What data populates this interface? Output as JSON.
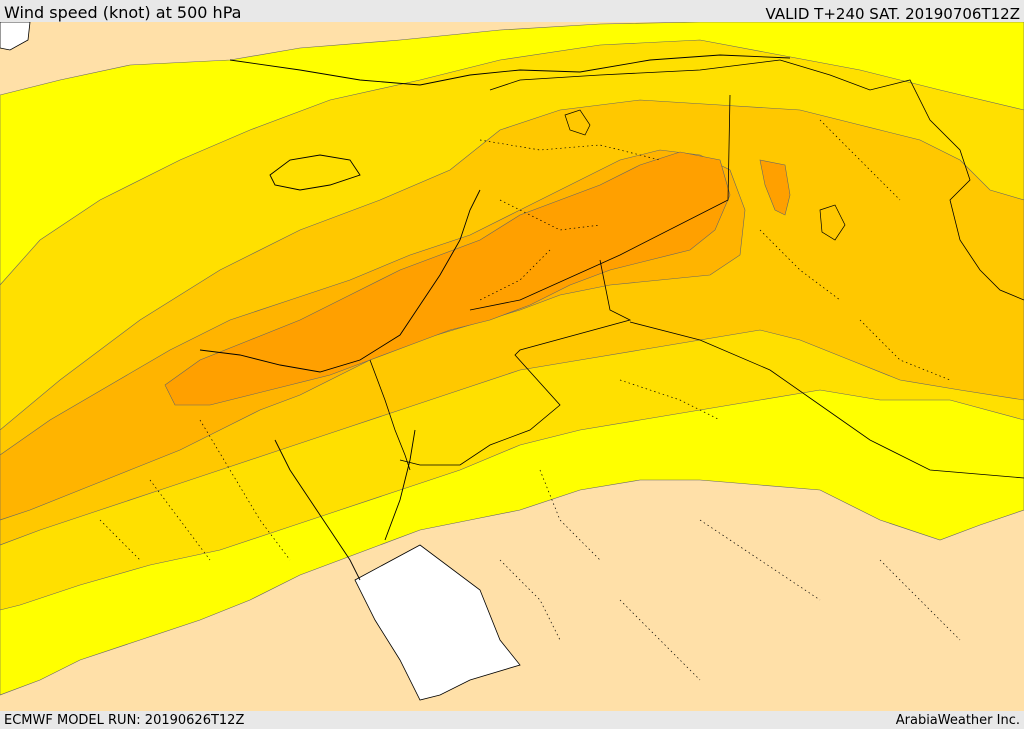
{
  "header": {
    "title": "Wind speed (knot) at 500 hPa",
    "valid_time": "VALID T+240 SAT. 20190706T12Z"
  },
  "footer": {
    "model_run": "ECMWF MODEL RUN: 20190626T12Z",
    "credit": "ArabiaWeather Inc."
  },
  "map": {
    "variable": "wind speed",
    "units": "knot",
    "level": "500 hPa",
    "colors": {
      "sea_white": "#ffffff",
      "band_0": "#ffe0a8",
      "band_1": "#ffff00",
      "band_2": "#ffe000",
      "band_3": "#ffc800",
      "band_4": "#ffb400",
      "band_5": "#ffa000",
      "coastline": "#000000",
      "contour": "#555555"
    }
  }
}
